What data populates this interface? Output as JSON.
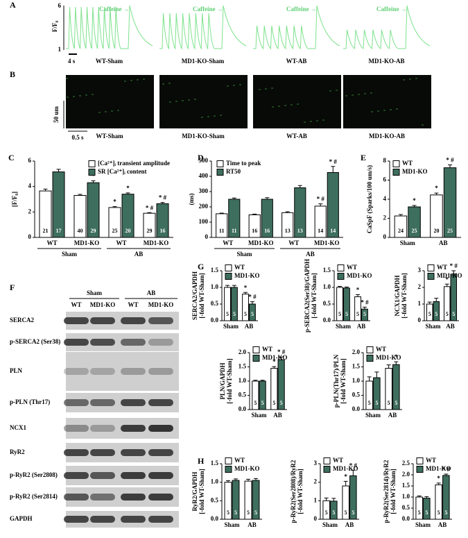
{
  "panels": {
    "A": {
      "letter": "A",
      "caffeine": [
        "Caffeine →",
        "Caffeine →",
        "Caffeine →",
        "Caffeine →"
      ],
      "ylabel": "F/F₀",
      "yticks": [
        6,
        1
      ],
      "scale": "4 s",
      "labels": [
        "WT-Sham",
        "MD1-KO-Sham",
        "WT-AB",
        "MD1-KO-AB"
      ]
    },
    "B": {
      "letter": "B",
      "yscale": "50 um",
      "xscale": "0.5 s",
      "labels": [
        "WT-Sham",
        "MD1-KO-Sham",
        "WT-AB",
        "MD1-KO-AB"
      ]
    },
    "F": {
      "letter": "F",
      "groups": [
        "Sham",
        "AB"
      ],
      "lanes": [
        "WT",
        "MD1-KO",
        "WT",
        "MD1-KO"
      ],
      "rows": [
        "SERCA2",
        "p-SERCA2 (Ser38)",
        "PLN",
        "p-PLN (Thr17)",
        "NCX1",
        "RyR2",
        "p-RyR2 (Ser2808)",
        "p-RyR2 (Ser2814)",
        "GAPDH"
      ]
    }
  },
  "chart_data": [
    {
      "type": "bar",
      "panel": "C",
      "ylabel": [
        "[F/F₀]"
      ],
      "categories": [
        "WT",
        "MD1-KO",
        "WT",
        "MD1-KO"
      ],
      "groups": [
        "Sham",
        "AB"
      ],
      "ylim": [
        0,
        6
      ],
      "yticks": [
        0,
        2,
        4,
        6
      ],
      "series": [
        {
          "name": "[Ca²⁺]ᵢ transient amplitude",
          "color": "#ffffff",
          "values": [
            3.65,
            3.3,
            2.35,
            1.9
          ],
          "errors": [
            0.15,
            0.08,
            0.07,
            0.05
          ],
          "n_labels": [
            21,
            40,
            25,
            29
          ],
          "annotations": [
            null,
            null,
            "*",
            "* #"
          ]
        },
        {
          "name": "SR [Ca²⁺]ᵢ content",
          "color": "#3e6e5e",
          "values": [
            5.15,
            4.3,
            3.4,
            2.65
          ],
          "errors": [
            0.2,
            0.15,
            0.1,
            0.1
          ],
          "n_labels": [
            17,
            29,
            20,
            16
          ],
          "annotations": [
            null,
            "*",
            "*",
            "* #"
          ]
        }
      ]
    },
    {
      "type": "bar",
      "panel": "D",
      "ylabel": [
        "(ms)"
      ],
      "categories": [
        "WT",
        "MD1-KO",
        "WT",
        "MD1-KO"
      ],
      "groups": [
        "Sham",
        "AB"
      ],
      "ylim": [
        0,
        500
      ],
      "yticks": [
        0,
        100,
        200,
        300,
        400,
        500
      ],
      "series": [
        {
          "name": "Time to peak",
          "color": "#ffffff",
          "values": [
            155,
            148,
            162,
            205
          ],
          "errors": [
            4,
            5,
            6,
            15
          ],
          "n_labels": [
            11,
            16,
            13,
            14
          ],
          "annotations": [
            null,
            null,
            null,
            "* #"
          ]
        },
        {
          "name": "RT50",
          "color": "#3e6e5e",
          "values": [
            250,
            250,
            325,
            425
          ],
          "errors": [
            8,
            10,
            15,
            40
          ],
          "n_labels": [
            11,
            16,
            13,
            14
          ],
          "annotations": [
            null,
            null,
            null,
            "* #"
          ]
        }
      ]
    },
    {
      "type": "bar",
      "panel": "E",
      "ylabel": [
        "CaSpF (Sparks/100 um/s)"
      ],
      "categories": [
        "Sham",
        "AB"
      ],
      "ylim": [
        0,
        8
      ],
      "yticks": [
        0,
        2,
        4,
        6,
        8
      ],
      "series": [
        {
          "name": "WT",
          "color": "#ffffff",
          "values": [
            2.25,
            4.45
          ],
          "errors": [
            0.15,
            0.2
          ],
          "n_labels": [
            24,
            20
          ],
          "annotations": [
            null,
            "*"
          ]
        },
        {
          "name": "MD1-KO",
          "color": "#3e6e5e",
          "values": [
            3.2,
            7.3
          ],
          "errors": [
            0.15,
            0.3
          ],
          "n_labels": [
            25,
            25
          ],
          "annotations": [
            "*",
            "* #"
          ]
        }
      ]
    },
    {
      "type": "bar",
      "panel": "G",
      "ylabel": [
        "SERCA2/GAPDH",
        "[-fold WT-Sham]"
      ],
      "categories": [
        "Sham",
        "AB"
      ],
      "ylim": [
        0,
        1.5
      ],
      "yticks": [
        {
          "value": 0,
          "label": "0.0"
        },
        0.5,
        {
          "value": 1,
          "label": "1.0"
        },
        1.5
      ],
      "series": [
        {
          "name": "WT",
          "color": "#ffffff",
          "values": [
            1.0,
            0.8
          ],
          "errors": [
            0.06,
            0.05
          ],
          "n_labels": [
            5,
            5
          ],
          "annotations": [
            null,
            "*"
          ]
        },
        {
          "name": "MD1-KO",
          "color": "#3e6e5e",
          "values": [
            1.0,
            0.5
          ],
          "errors": [
            0.06,
            0.07
          ],
          "n_labels": [
            5,
            5
          ],
          "annotations": [
            null,
            "* #"
          ]
        }
      ]
    },
    {
      "type": "bar",
      "ylabel": [
        "p-SERCA2(Ser38)/GAPDH",
        "[-fold WT-Sham]"
      ],
      "categories": [
        "Sham",
        "AB"
      ],
      "ylim": [
        0,
        1.5
      ],
      "yticks": [
        {
          "value": 0,
          "label": "0.0"
        },
        0.5,
        {
          "value": 1,
          "label": "1.0"
        },
        1.5
      ],
      "series": [
        {
          "name": "WT",
          "color": "#ffffff",
          "values": [
            1.0,
            0.72
          ],
          "errors": [
            0.03,
            0.06
          ],
          "n_labels": [
            5,
            5
          ],
          "annotations": [
            null,
            "*"
          ]
        },
        {
          "name": "MD1-KO",
          "color": "#3e6e5e",
          "values": [
            0.98,
            0.35
          ],
          "errors": [
            0.03,
            0.06
          ],
          "n_labels": [
            5,
            5
          ],
          "annotations": [
            null,
            "* #"
          ]
        }
      ]
    },
    {
      "type": "bar",
      "ylabel": [
        "NCX1/GAPDH",
        "[-fold WT-Sham]"
      ],
      "categories": [
        "Sham",
        "AB"
      ],
      "ylim": [
        0,
        3
      ],
      "yticks": [
        0,
        1,
        2,
        3
      ],
      "series": [
        {
          "name": "WT",
          "color": "#ffffff",
          "values": [
            1.0,
            2.05
          ],
          "errors": [
            0.12,
            0.15
          ],
          "n_labels": [
            5,
            5
          ],
          "annotations": [
            null,
            "*"
          ]
        },
        {
          "name": "MD1-KO",
          "color": "#3e6e5e",
          "values": [
            1.15,
            2.8
          ],
          "errors": [
            0.2,
            0.2
          ],
          "n_labels": [
            5,
            5
          ],
          "annotations": [
            null,
            "* #"
          ]
        }
      ]
    },
    {
      "type": "bar",
      "ylabel": [
        "PLN/GAPDH",
        "[-fold WT-Sham]"
      ],
      "categories": [
        "Sham",
        "AB"
      ],
      "ylim": [
        0,
        2
      ],
      "yticks": [
        {
          "value": 0,
          "label": "0.0"
        },
        0.5,
        {
          "value": 1,
          "label": "1.0"
        },
        1.5,
        {
          "value": 2,
          "label": "2.0"
        }
      ],
      "series": [
        {
          "name": "WT",
          "color": "#ffffff",
          "values": [
            1.0,
            1.45
          ],
          "errors": [
            0.03,
            0.06
          ],
          "n_labels": [
            5,
            5
          ],
          "annotations": [
            null,
            "*"
          ]
        },
        {
          "name": "MD1-KO",
          "color": "#3e6e5e",
          "values": [
            1.0,
            1.75
          ],
          "errors": [
            0.03,
            0.1
          ],
          "n_labels": [
            5,
            5
          ],
          "annotations": [
            null,
            "* #"
          ]
        }
      ]
    },
    {
      "type": "bar",
      "ylabel": [
        "p-PLN(Thr17)/PLN",
        "[-fold WT-Sham]"
      ],
      "categories": [
        "Sham",
        "AB"
      ],
      "ylim": [
        0,
        2
      ],
      "yticks": [
        {
          "value": 0,
          "label": "0.0"
        },
        0.5,
        {
          "value": 1,
          "label": "1.0"
        },
        1.5,
        {
          "value": 2,
          "label": "2.0"
        }
      ],
      "series": [
        {
          "name": "WT",
          "color": "#ffffff",
          "values": [
            1.0,
            1.45
          ],
          "errors": [
            0.15,
            0.12
          ],
          "n_labels": [
            5,
            5
          ],
          "annotations": [
            null,
            null
          ]
        },
        {
          "name": "MD1-KO",
          "color": "#3e6e5e",
          "values": [
            1.12,
            1.58
          ],
          "errors": [
            0.2,
            0.1
          ],
          "n_labels": [
            5,
            5
          ],
          "annotations": [
            null,
            "*"
          ]
        }
      ]
    },
    {
      "type": "bar",
      "panel": "H",
      "ylabel": [
        "RyR2/GAPDH",
        "[-fold WT-Sham]"
      ],
      "categories": [
        "Sham",
        "AB"
      ],
      "ylim": [
        0,
        1.5
      ],
      "yticks": [
        {
          "value": 0,
          "label": "0.0"
        },
        0.5,
        {
          "value": 1,
          "label": "1.0"
        },
        1.5
      ],
      "series": [
        {
          "name": "WT",
          "color": "#ffffff",
          "values": [
            1.0,
            1.03
          ],
          "errors": [
            0.04,
            0.05
          ],
          "n_labels": [
            5,
            5
          ],
          "annotations": [
            null,
            null
          ]
        },
        {
          "name": "MD1-KO",
          "color": "#3e6e5e",
          "values": [
            1.05,
            1.05
          ],
          "errors": [
            0.04,
            0.05
          ],
          "n_labels": [
            5,
            5
          ],
          "annotations": [
            null,
            null
          ]
        }
      ]
    },
    {
      "type": "bar",
      "ylabel": [
        "p-RyR2(Ser2808)/RyR2",
        "[-fold WT-Sham]"
      ],
      "categories": [
        "Sham",
        "AB"
      ],
      "ylim": [
        0,
        3
      ],
      "yticks": [
        0,
        1,
        2,
        3
      ],
      "series": [
        {
          "name": "WT",
          "color": "#ffffff",
          "values": [
            1.0,
            1.8
          ],
          "errors": [
            0.15,
            0.25
          ],
          "n_labels": [
            5,
            5
          ],
          "annotations": [
            null,
            "*"
          ]
        },
        {
          "name": "MD1-KO",
          "color": "#3e6e5e",
          "values": [
            0.98,
            2.35
          ],
          "errors": [
            0.15,
            0.3
          ],
          "n_labels": [
            5,
            5
          ],
          "annotations": [
            null,
            "* #"
          ]
        }
      ]
    },
    {
      "type": "bar",
      "ylabel": [
        "p-RyR2(Ser2814)/RyR2",
        "[-fold WT-Sham]"
      ],
      "categories": [
        "Sham",
        "AB"
      ],
      "ylim": [
        0,
        2.5
      ],
      "yticks": [
        {
          "value": 0,
          "label": "0.0"
        },
        0.5,
        {
          "value": 1,
          "label": "1.0"
        },
        1.5,
        {
          "value": 2,
          "label": "2.0"
        },
        2.5
      ],
      "series": [
        {
          "name": "WT",
          "color": "#ffffff",
          "values": [
            1.0,
            1.55
          ],
          "errors": [
            0.05,
            0.08
          ],
          "n_labels": [
            5,
            5
          ],
          "annotations": [
            null,
            "*"
          ]
        },
        {
          "name": "MD1-KO",
          "color": "#3e6e5e",
          "values": [
            0.95,
            1.97
          ],
          "errors": [
            0.07,
            0.06
          ],
          "n_labels": [
            5,
            5
          ],
          "annotations": [
            null,
            "* #"
          ]
        }
      ]
    }
  ]
}
